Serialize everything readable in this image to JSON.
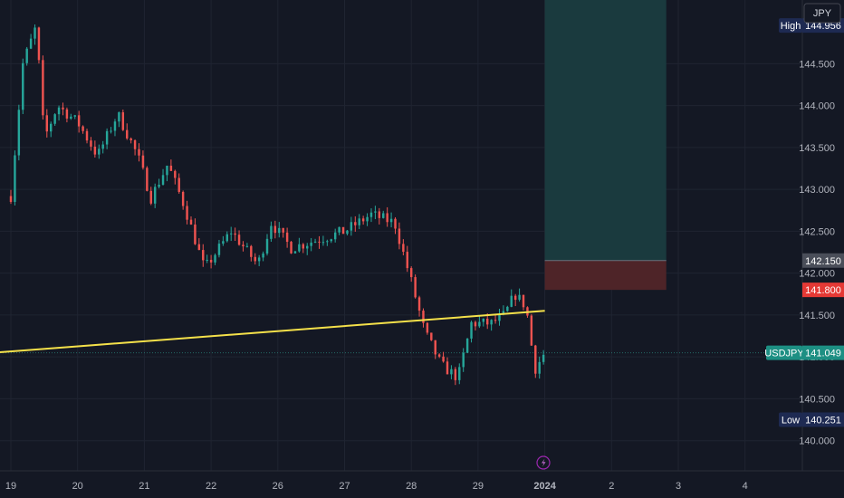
{
  "currency_button": "JPY",
  "chart_data": {
    "type": "candlestick",
    "symbol": "USDJPY",
    "ylim": [
      139.64,
      145.26
    ],
    "y_ticks": [
      "140.000",
      "140.500",
      "141.000",
      "141.500",
      "142.000",
      "142.500",
      "143.000",
      "143.500",
      "144.000",
      "144.500"
    ],
    "x_ticks": [
      {
        "label": "19",
        "x": 0
      },
      {
        "label": "20",
        "x": 1
      },
      {
        "label": "21",
        "x": 2
      },
      {
        "label": "22",
        "x": 3
      },
      {
        "label": "26",
        "x": 4
      },
      {
        "label": "27",
        "x": 5
      },
      {
        "label": "28",
        "x": 6
      },
      {
        "label": "29",
        "x": 7
      },
      {
        "label": "2024",
        "x": 8,
        "bold": true
      },
      {
        "label": "2",
        "x": 9
      },
      {
        "label": "3",
        "x": 10
      },
      {
        "label": "4",
        "x": 11
      }
    ],
    "price_labels": {
      "high": {
        "title": "High",
        "value": "144.956"
      },
      "low": {
        "title": "Low",
        "value": "140.251"
      },
      "last": {
        "title": "USDJPY",
        "value": "141.049"
      },
      "target": {
        "value": "142.150"
      },
      "stop": {
        "value": "141.800"
      }
    },
    "anchors": [
      [
        0,
        142.92
      ],
      [
        0.18,
        144.5
      ],
      [
        0.38,
        144.95
      ],
      [
        0.5,
        143.6
      ],
      [
        0.7,
        144.0
      ],
      [
        1.0,
        143.8
      ],
      [
        1.3,
        143.4
      ],
      [
        1.6,
        143.9
      ],
      [
        1.9,
        143.4
      ],
      [
        2.1,
        142.9
      ],
      [
        2.35,
        143.3
      ],
      [
        2.6,
        142.8
      ],
      [
        2.9,
        142.05
      ],
      [
        3.3,
        142.5
      ],
      [
        3.7,
        142.1
      ],
      [
        3.9,
        142.6
      ],
      [
        4.2,
        142.3
      ],
      [
        4.6,
        142.4
      ],
      [
        5.0,
        142.5
      ],
      [
        5.4,
        142.7
      ],
      [
        5.75,
        142.6
      ],
      [
        6.0,
        141.9
      ],
      [
        6.2,
        141.3
      ],
      [
        6.45,
        140.9
      ],
      [
        6.7,
        140.75
      ],
      [
        6.9,
        141.4
      ],
      [
        7.2,
        141.4
      ],
      [
        7.4,
        141.5
      ],
      [
        7.55,
        141.75
      ],
      [
        7.72,
        141.6
      ],
      [
        7.85,
        140.85
      ],
      [
        8.0,
        141.05
      ]
    ],
    "candle_step": 0.06,
    "trendline": {
      "x": [
        -0.25,
        8.0
      ],
      "y": [
        141.05,
        141.55
      ],
      "color": "#f5e14a"
    },
    "position": {
      "x_start": 8.0,
      "x_end": 9.82,
      "entry": 142.15,
      "stop": 141.8,
      "target": 145.26
    },
    "colors": {
      "up": "#26a69a",
      "down": "#ef5350",
      "profit_zone": "#1a3a3e",
      "loss_zone": "#4e2428"
    }
  }
}
